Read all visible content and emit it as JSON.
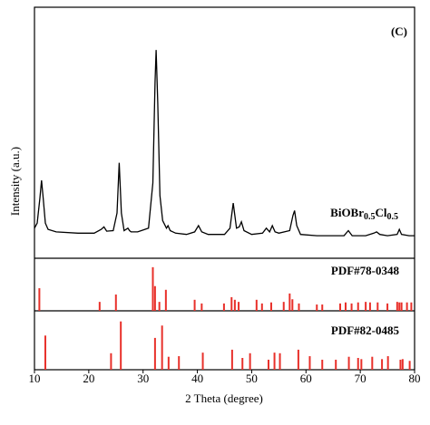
{
  "chart_data": [
    {
      "type": "line",
      "panel_label": "(C)",
      "label": [
        "BiOBr",
        "0.5",
        "Cl",
        "0.5"
      ],
      "ylabel": "Intensity (a.u.)",
      "color": "#000000",
      "xlim": [
        10,
        80
      ],
      "ylim": [
        0,
        100
      ],
      "x": [
        10,
        10.5,
        11,
        11.3,
        11.6,
        12,
        12.5,
        14,
        18,
        21,
        22.3,
        22.8,
        23.3,
        24.5,
        25.2,
        25.6,
        26,
        26.5,
        27.2,
        27.5,
        27.8,
        29,
        31,
        31.8,
        32.2,
        32.4,
        32.7,
        33.1,
        33.6,
        34.3,
        34.6,
        35,
        36,
        38,
        39.5,
        40.2,
        40.8,
        42,
        45,
        46,
        46.6,
        47.2,
        47.7,
        48.1,
        48.6,
        50,
        52,
        52.7,
        53.3,
        53.8,
        54.3,
        55,
        57,
        57.6,
        57.9,
        58.3,
        59,
        62,
        64,
        67,
        67.8,
        68.5,
        71,
        72.5,
        73,
        73.6,
        75,
        76.8,
        77.2,
        77.6,
        79,
        80
      ],
      "values": [
        12,
        14,
        24,
        31,
        24,
        14,
        11.5,
        10.5,
        10,
        10,
        11.5,
        12.5,
        10.8,
        11,
        18,
        38,
        18,
        11,
        12,
        11,
        10.5,
        10.5,
        12,
        30,
        70,
        83,
        62,
        25,
        15,
        12,
        13,
        11,
        10,
        9.5,
        10.5,
        13,
        10.5,
        9.5,
        9.5,
        12,
        22,
        12,
        12.5,
        14.5,
        11,
        9.5,
        10,
        12,
        10.5,
        13,
        10.5,
        10,
        11,
        17,
        19,
        13,
        9.5,
        9,
        9,
        9,
        11,
        9,
        9,
        10,
        10.5,
        9.5,
        9,
        9.5,
        11.5,
        9.5,
        9,
        9
      ]
    },
    {
      "type": "stick",
      "name": "PDF#78-0348",
      "color": "#e8302a",
      "xlim": [
        10,
        80
      ],
      "ylim": [
        0,
        100
      ],
      "x": [
        10.9,
        22,
        25,
        31.8,
        32.2,
        33,
        34.2,
        39.5,
        40.8,
        44.9,
        46.3,
        46.9,
        47.6,
        50.9,
        51.9,
        53.6,
        55.9,
        57,
        57.5,
        58.7,
        62,
        63,
        66.3,
        67.3,
        68.4,
        69.6,
        71,
        71.8,
        73.2,
        75,
        76.8,
        77.2,
        77.6,
        78.6,
        79.4
      ],
      "values": [
        43,
        17,
        31,
        83,
        47,
        17,
        40,
        21,
        14,
        14,
        26,
        21,
        17,
        21,
        14,
        16,
        17,
        33,
        22,
        14,
        12,
        12,
        14,
        16,
        14,
        16,
        17,
        16,
        16,
        14,
        17,
        16,
        16,
        16,
        16
      ]
    },
    {
      "type": "stick",
      "name": "PDF#82-0485",
      "color": "#e8302a",
      "xlim": [
        10,
        80
      ],
      "ylim": [
        0,
        100
      ],
      "xlabel": "2 Theta (degree)",
      "xticks": [
        10,
        20,
        30,
        40,
        50,
        60,
        70,
        80
      ],
      "x": [
        12,
        24.1,
        25.9,
        32.2,
        33.5,
        34.7,
        36.6,
        41,
        46.4,
        48.3,
        49.7,
        53.1,
        54.2,
        55.2,
        58.6,
        60.7,
        63,
        65.5,
        67.9,
        69.6,
        70.2,
        72.2,
        74,
        75.1,
        77.4,
        77.8,
        79.1
      ],
      "values": [
        58,
        28,
        82,
        54,
        75,
        22,
        23,
        29,
        34,
        20,
        28,
        17,
        29,
        28,
        34,
        23,
        17,
        17,
        22,
        20,
        18,
        22,
        18,
        23,
        17,
        18,
        15
      ]
    }
  ]
}
